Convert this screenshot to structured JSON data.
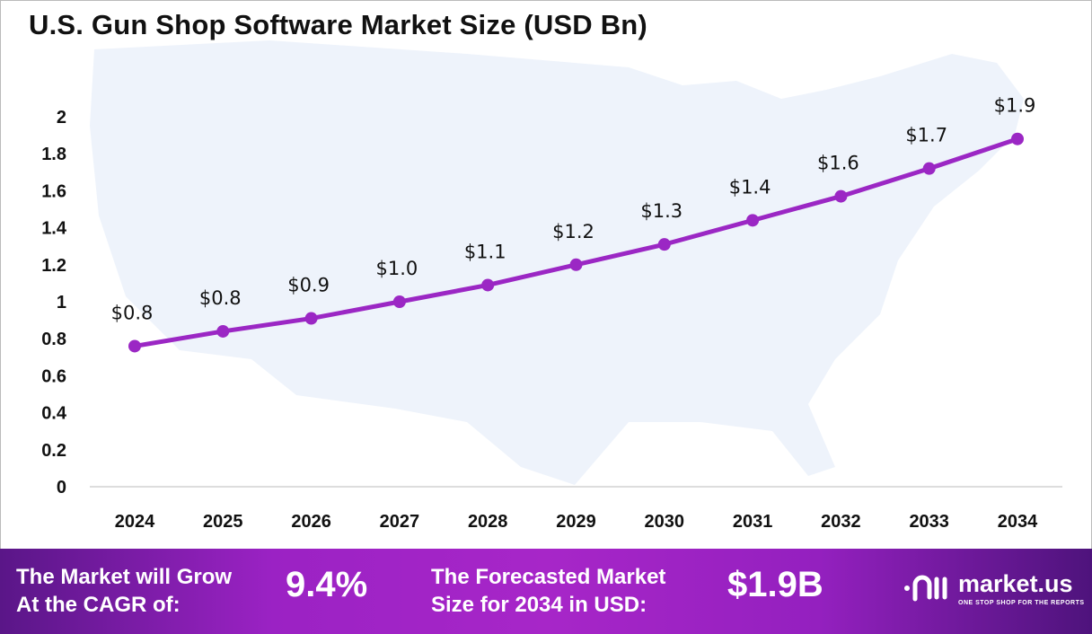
{
  "chart_data": {
    "type": "line",
    "title": "U.S. Gun Shop Software Market Size (USD Bn)",
    "xlabel": "",
    "ylabel": "",
    "categories": [
      "2024",
      "2025",
      "2026",
      "2027",
      "2028",
      "2029",
      "2030",
      "2031",
      "2032",
      "2033",
      "2034"
    ],
    "values": [
      0.76,
      0.84,
      0.91,
      1.0,
      1.09,
      1.2,
      1.31,
      1.44,
      1.57,
      1.72,
      1.88
    ],
    "data_labels": [
      "$0.8",
      "$0.8",
      "$0.9",
      "$1.0",
      "$1.1",
      "$1.2",
      "$1.3",
      "$1.4",
      "$1.6",
      "$1.7",
      "$1.9"
    ],
    "ylim": [
      0,
      2
    ],
    "yticks": [
      "0",
      "0.2",
      "0.4",
      "0.6",
      "0.8",
      "1",
      "1.2",
      "1.4",
      "1.6",
      "1.8",
      "2"
    ],
    "grid": false,
    "line_color": "#9b27c4",
    "background": "US map silhouette"
  },
  "banner": {
    "cagr_label_line1": "The Market will Grow",
    "cagr_label_line2": "At the CAGR of:",
    "cagr_value": "9.4%",
    "forecast_label_line1": "The Forecasted Market",
    "forecast_label_line2": "Size for 2034 in USD:",
    "forecast_value": "$1.9B",
    "logo_name": "market.us",
    "logo_tagline": "ONE STOP SHOP FOR THE REPORTS"
  }
}
